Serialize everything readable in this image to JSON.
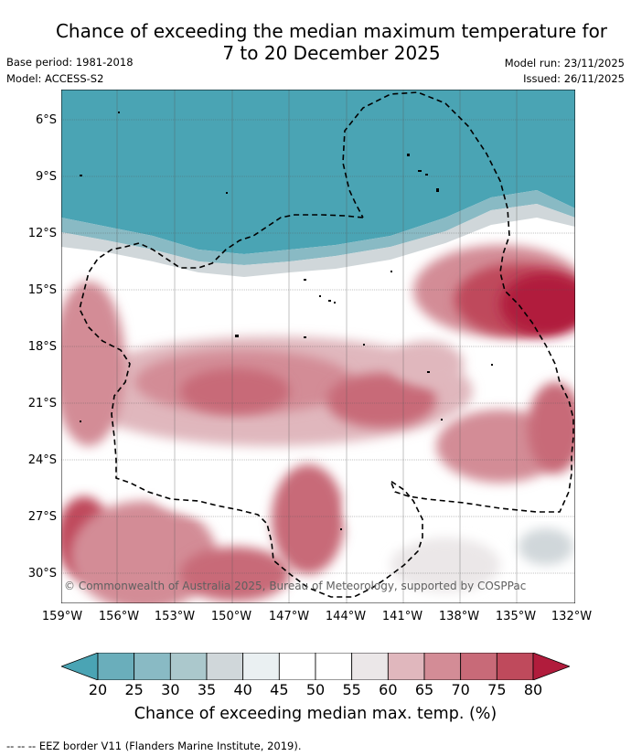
{
  "title_line1": "Chance of exceeding the median maximum temperature for",
  "title_line2": "7 to 20 December 2025",
  "base_period": "Base period: 1981-2018",
  "model": "Model: ACCESS-S2",
  "model_run": "Model run: 23/11/2025",
  "issued": "Issued: 26/11/2025",
  "copyright": "© Commonwealth of Australia 2025, Bureau of Meteorology, supported by COSPPac",
  "lat_labels": [
    "6°S",
    "9°S",
    "12°S",
    "15°S",
    "18°S",
    "21°S",
    "24°S",
    "27°S",
    "30°S"
  ],
  "lon_labels": [
    "159°W",
    "156°W",
    "153°W",
    "150°W",
    "147°W",
    "144°W",
    "141°W",
    "138°W",
    "135°W",
    "132°W"
  ],
  "colorbar": {
    "ticks": [
      "20",
      "25",
      "30",
      "35",
      "40",
      "45",
      "50",
      "55",
      "60",
      "65",
      "70",
      "75",
      "80"
    ],
    "colors": [
      "#4aa4b4",
      "#6aaebb",
      "#89bac4",
      "#abc8cc",
      "#d0d7da",
      "#eaf0f2",
      "#ffffff",
      "#ffffff",
      "#ebe7e8",
      "#e0b7bd",
      "#d38c96",
      "#c86a78",
      "#bf4a5c",
      "#b11c3c"
    ],
    "label": "Chance of exceeding median max. temp. (%)"
  },
  "footnote": "--  --  -- EEZ border V11 (Flanders Marine Institute, 2019)."
}
